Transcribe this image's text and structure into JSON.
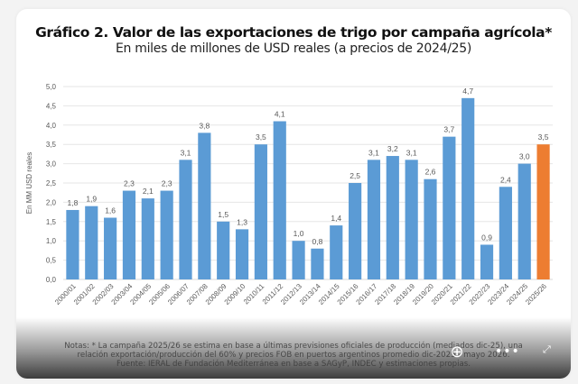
{
  "chart_data": {
    "type": "bar",
    "title": "Gráfico 2. Valor de las exportaciones de trigo por campaña agrícola*",
    "subtitle": "En miles de millones de USD reales (a precios de 2024/25)",
    "xlabel": "",
    "ylabel": "En MM USD reales",
    "ylim": [
      0,
      5
    ],
    "yticks": [
      "0,0",
      "0,5",
      "1,0",
      "1,5",
      "2,0",
      "2,5",
      "3,0",
      "3,5",
      "4,0",
      "4,5",
      "5,0"
    ],
    "grid": true,
    "categories": [
      "2000/01",
      "2001/02",
      "2002/03",
      "2003/04",
      "2004/05",
      "2005/06",
      "2006/07",
      "2007/08",
      "2008/09",
      "2009/10",
      "2010/11",
      "2011/12",
      "2012/13",
      "2013/14",
      "2014/15",
      "2015/16",
      "2016/17",
      "2017/18",
      "2018/19",
      "2019/20",
      "2020/21",
      "2021/22",
      "2022/23",
      "2023/24",
      "2024/25",
      "2025/26"
    ],
    "values": [
      1.8,
      1.9,
      1.6,
      2.3,
      2.1,
      2.3,
      3.1,
      3.8,
      1.5,
      1.3,
      3.5,
      4.1,
      1.0,
      0.8,
      1.4,
      2.5,
      3.1,
      3.2,
      3.1,
      2.6,
      3.7,
      4.7,
      0.9,
      2.4,
      3.0,
      3.5
    ],
    "labels": [
      "1,8",
      "1,9",
      "1,6",
      "2,3",
      "2,1",
      "2,3",
      "3,1",
      "3,8",
      "1,5",
      "1,3",
      "3,5",
      "4,1",
      "1,0",
      "0,8",
      "1,4",
      "2,5",
      "3,1",
      "3,2",
      "3,1",
      "2,6",
      "3,7",
      "4,7",
      "0,9",
      "2,4",
      "3,0",
      "3,5"
    ],
    "highlight_index": 25,
    "colors": {
      "bar": "#5b9bd5",
      "highlight": "#ed7d31",
      "grid": "#e6e6e6",
      "label": "#595959"
    }
  },
  "notes": {
    "line1": "Notas: * La campaña 2025/26 se estima en base a últimas previsiones oficiales de producción (mediados dic-25), una",
    "line2": "relación exportación/producción del 60% y precios FOB en puertos argentinos promedio dic-2025 - mayo 2026.",
    "line3": "Fuente: IERAL de Fundación Mediterránea en base a SAGyP, INDEC y estimaciones propias."
  },
  "controls": {
    "zoom_icon": "⊕",
    "more_icon": "•••",
    "expand_icon": "⤢"
  }
}
